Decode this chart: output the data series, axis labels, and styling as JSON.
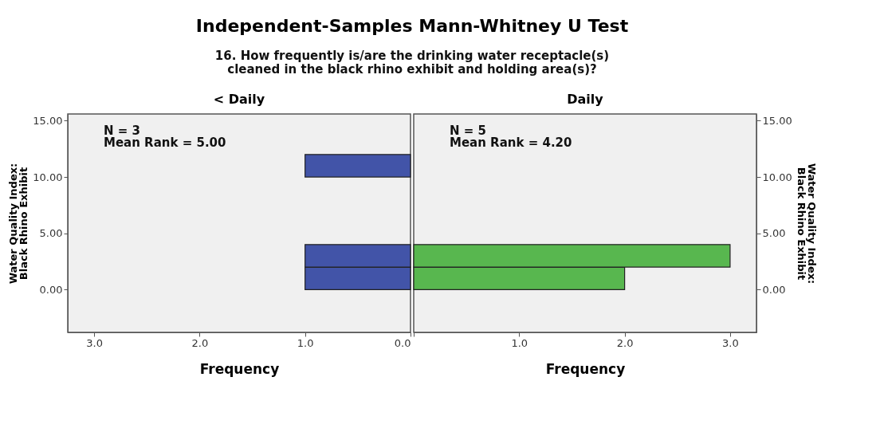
{
  "chart_data": [
    {
      "type": "histogram",
      "orientation": "horizontal",
      "title": "Independent-Samples Mann-Whitney U Test",
      "subtitle": "16. How frequently is/are the drinking water receptacle(s)\ncleaned in the black rhino exhibit and holding area(s)?",
      "legend_title": "< Daily",
      "xlabel": "Frequency",
      "ylabel": "Water Quality Index:\nBlack Rhino Exhibit",
      "bins": [
        0,
        2,
        4,
        6,
        8,
        10,
        12
      ],
      "series": [
        {
          "color": "#4254a8",
          "values": [
            1,
            1,
            0,
            0,
            0,
            1
          ]
        }
      ],
      "xlim": [
        3.25,
        0
      ],
      "xticks": [
        {
          "value": 3,
          "label": "3.0"
        },
        {
          "value": 2,
          "label": "2.0"
        },
        {
          "value": 1,
          "label": "1.0"
        },
        {
          "value": 0,
          "label": "0.0"
        }
      ],
      "ylim": [
        -3.8,
        15.6
      ],
      "yticks": [
        {
          "value": 0,
          "label": "0.00"
        },
        {
          "value": 5,
          "label": "5.00"
        },
        {
          "value": 10,
          "label": "10.00"
        },
        {
          "value": 15,
          "label": "15.00"
        }
      ],
      "annotations": [
        "N = 3",
        "Mean Rank = 5.00"
      ],
      "grid": false
    },
    {
      "type": "histogram",
      "orientation": "horizontal",
      "legend_title": "Daily",
      "xlabel": "Frequency",
      "ylabel": "Water Quality Index:\nBlack Rhino Exhibit",
      "bins": [
        0,
        2,
        4
      ],
      "series": [
        {
          "color": "#58b74f",
          "values": [
            2,
            3
          ]
        }
      ],
      "xlim": [
        0,
        3.25
      ],
      "xticks": [
        {
          "value": 0,
          "label": null
        },
        {
          "value": 1,
          "label": "1.0"
        },
        {
          "value": 2,
          "label": "2.0"
        },
        {
          "value": 3,
          "label": "3.0"
        }
      ],
      "ylim": [
        -3.8,
        15.6
      ],
      "yticks": [
        {
          "value": 0,
          "label": "0.00"
        },
        {
          "value": 5,
          "label": "5.00"
        },
        {
          "value": 10,
          "label": "10.00"
        },
        {
          "value": 15,
          "label": "15.00"
        }
      ],
      "annotations": [
        "N = 5",
        "Mean Rank = 4.20"
      ],
      "grid": false
    }
  ]
}
